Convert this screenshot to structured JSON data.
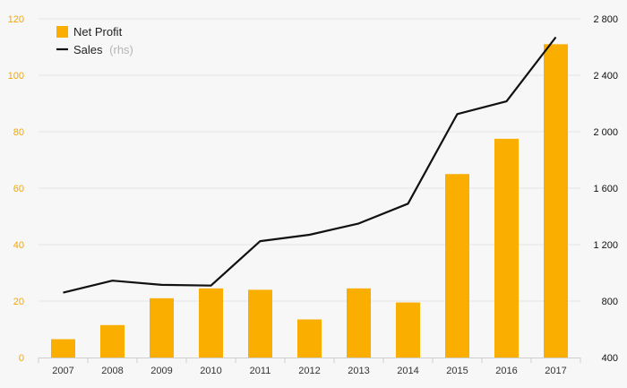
{
  "chart_data": {
    "type": "bar",
    "categories": [
      "2007",
      "2008",
      "2009",
      "2010",
      "2011",
      "2012",
      "2013",
      "2014",
      "2015",
      "2016",
      "2017"
    ],
    "series": [
      {
        "name": "Net Profit",
        "type": "bar",
        "axis": "left",
        "color": "#f9ae00",
        "values": [
          6.5,
          11.5,
          21,
          24.5,
          24,
          13.5,
          24.5,
          19.5,
          65,
          77.5,
          111
        ]
      },
      {
        "name": "Sales",
        "name_suffix": "(rhs)",
        "type": "line",
        "axis": "right",
        "color": "#111111",
        "values": [
          860,
          945,
          915,
          910,
          1225,
          1270,
          1350,
          1490,
          2125,
          2215,
          2670
        ]
      }
    ],
    "y_left": {
      "ylim": [
        0,
        120
      ],
      "ticks": [
        "0",
        "20",
        "40",
        "60",
        "80",
        "100",
        "120"
      ],
      "color": "#f5a800"
    },
    "y_right": {
      "ylim": [
        400,
        2800
      ],
      "ticks": [
        "400",
        "800",
        "1 200",
        "1 600",
        "2 000",
        "2 400",
        "2 800"
      ]
    },
    "grid": true,
    "legend": {
      "position": "top-left"
    }
  }
}
